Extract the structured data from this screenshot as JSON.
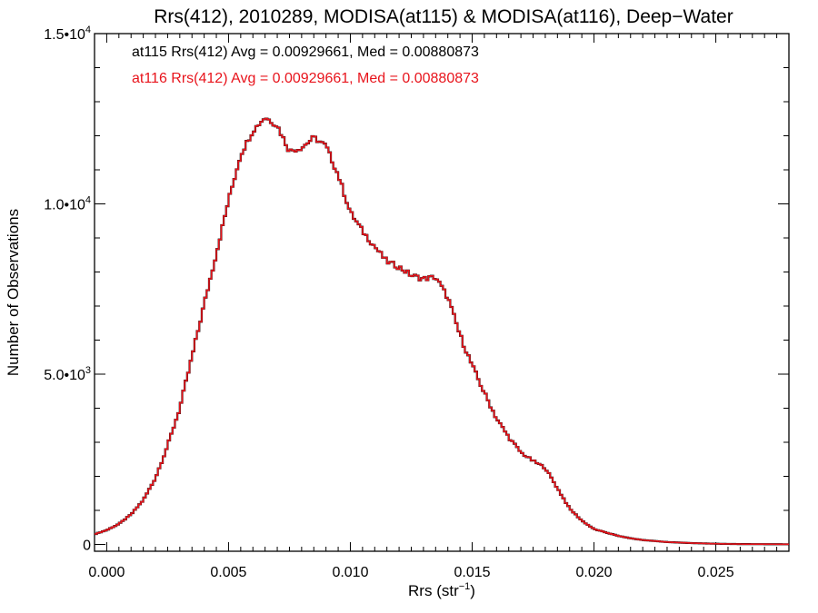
{
  "chart_data": {
    "type": "histogram",
    "title": "Rrs(412), 2010289, MODISA(at115) & MODISA(at116), Deep−Water",
    "xlabel": {
      "main": "Rrs (str",
      "sup": "−1",
      "close": ")"
    },
    "ylabel": "Number of Observations",
    "xlim": [
      -0.0005,
      0.028
    ],
    "ylim": [
      -200,
      15000
    ],
    "x_ticks": [
      {
        "value": 0.0,
        "label": "0.000"
      },
      {
        "value": 0.005,
        "label": "0.005"
      },
      {
        "value": 0.01,
        "label": "0.010"
      },
      {
        "value": 0.015,
        "label": "0.015"
      },
      {
        "value": 0.02,
        "label": "0.020"
      },
      {
        "value": 0.025,
        "label": "0.025"
      }
    ],
    "y_ticks": [
      {
        "value": 0,
        "label": "0",
        "sup": ""
      },
      {
        "value": 5000,
        "label": "5.0•10",
        "sup": "3"
      },
      {
        "value": 10000,
        "label": "1.0•10",
        "sup": "4"
      },
      {
        "value": 15000,
        "label": "1.5•10",
        "sup": "4"
      }
    ],
    "annotations": [
      {
        "text": "at115 Rrs(412) Avg = 0.00929661, Med = 0.00880873",
        "color": "#000000"
      },
      {
        "text": "at116 Rrs(412) Avg = 0.00929661, Med = 0.00880873",
        "color": "#e8141c"
      }
    ],
    "series": [
      {
        "color": "#000000",
        "width": 2.2
      },
      {
        "color": "#e8141c",
        "width": 1.6
      }
    ],
    "bin_width": 0.0001,
    "curve_knots": [
      [
        -0.0005,
        300
      ],
      [
        0.0,
        420
      ],
      [
        0.0005,
        600
      ],
      [
        0.001,
        880
      ],
      [
        0.0015,
        1300
      ],
      [
        0.002,
        1950
      ],
      [
        0.0025,
        2900
      ],
      [
        0.003,
        4000
      ],
      [
        0.0035,
        5500
      ],
      [
        0.004,
        7050
      ],
      [
        0.0045,
        8550
      ],
      [
        0.005,
        10100
      ],
      [
        0.0055,
        11450
      ],
      [
        0.006,
        12150
      ],
      [
        0.0065,
        12550
      ],
      [
        0.007,
        12300
      ],
      [
        0.0075,
        11550
      ],
      [
        0.008,
        11650
      ],
      [
        0.0085,
        11950
      ],
      [
        0.009,
        11700
      ],
      [
        0.0095,
        10850
      ],
      [
        0.01,
        9750
      ],
      [
        0.0105,
        9200
      ],
      [
        0.011,
        8750
      ],
      [
        0.0115,
        8300
      ],
      [
        0.012,
        8150
      ],
      [
        0.0125,
        7900
      ],
      [
        0.013,
        7800
      ],
      [
        0.0135,
        7850
      ],
      [
        0.014,
        7250
      ],
      [
        0.0145,
        6150
      ],
      [
        0.015,
        5250
      ],
      [
        0.0155,
        4450
      ],
      [
        0.016,
        3700
      ],
      [
        0.0165,
        3150
      ],
      [
        0.017,
        2700
      ],
      [
        0.0175,
        2450
      ],
      [
        0.018,
        2250
      ],
      [
        0.0185,
        1650
      ],
      [
        0.019,
        1050
      ],
      [
        0.0195,
        700
      ],
      [
        0.02,
        450
      ],
      [
        0.0205,
        350
      ],
      [
        0.021,
        250
      ],
      [
        0.0215,
        180
      ],
      [
        0.022,
        130
      ],
      [
        0.023,
        70
      ],
      [
        0.024,
        40
      ],
      [
        0.025,
        20
      ],
      [
        0.026,
        10
      ],
      [
        0.028,
        5
      ]
    ]
  }
}
